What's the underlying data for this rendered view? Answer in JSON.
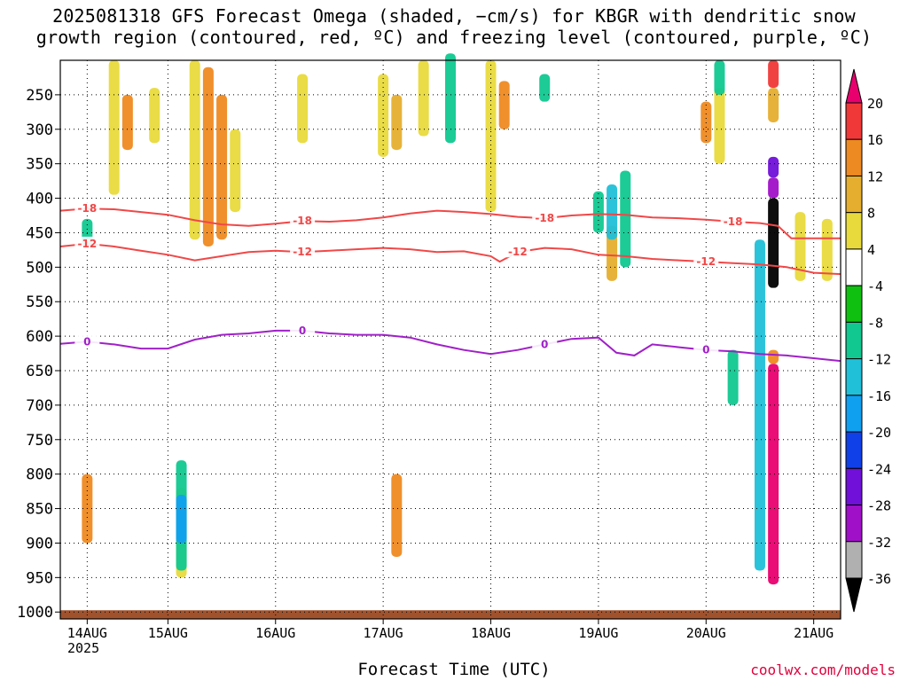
{
  "title_line1": "2025081318 GFS Forecast Omega (shaded, −cm/s) for KBGR with dendritic snow",
  "title_line2": "growth region (contoured, red, ºC) and freezing level (contoured, purple, ºC)",
  "credit": "coolwx.com/models",
  "chart_data": {
    "type": "heatmap",
    "xlabel": "Forecast Time (UTC)",
    "x_ticks": [
      "14AUG",
      "15AUG",
      "16AUG",
      "17AUG",
      "18AUG",
      "19AUG",
      "20AUG",
      "21AUG"
    ],
    "x_tick_hours": [
      6,
      24,
      48,
      72,
      96,
      120,
      144,
      168
    ],
    "x_range_hours": [
      0,
      174
    ],
    "year_label": "2025",
    "y_ticks": [
      250,
      300,
      350,
      400,
      450,
      500,
      550,
      600,
      650,
      700,
      750,
      800,
      850,
      900,
      950,
      1000
    ],
    "y_range_hpa": [
      200,
      1010
    ],
    "grid": true,
    "colorbar": {
      "labels": [
        "20",
        "16",
        "12",
        "8",
        "4",
        "-4",
        "-8",
        "-12",
        "-16",
        "-20",
        "-24",
        "-28",
        "-32",
        "-36"
      ],
      "colors": [
        "#e8006e",
        "#f03838",
        "#ee8a22",
        "#e6ae2e",
        "#e8da3c",
        "#ffffff",
        "#10c010",
        "#10c890",
        "#20c0d8",
        "#10a0f0",
        "#1040e8",
        "#7010d8",
        "#a010c8",
        "#b0b0b0",
        "#000000"
      ]
    },
    "contours": [
      {
        "label": "-18",
        "color": "#f04848",
        "points": [
          [
            0,
            418
          ],
          [
            6,
            415
          ],
          [
            12,
            416
          ],
          [
            18,
            420
          ],
          [
            24,
            424
          ],
          [
            30,
            432
          ],
          [
            36,
            438
          ],
          [
            42,
            440
          ],
          [
            48,
            437
          ],
          [
            54,
            433
          ],
          [
            60,
            434
          ],
          [
            66,
            432
          ],
          [
            72,
            428
          ],
          [
            78,
            422
          ],
          [
            84,
            418
          ],
          [
            90,
            420
          ],
          [
            96,
            423
          ],
          [
            102,
            427
          ],
          [
            108,
            429
          ],
          [
            114,
            425
          ],
          [
            120,
            423
          ],
          [
            126,
            424
          ],
          [
            132,
            428
          ],
          [
            138,
            429
          ],
          [
            144,
            431
          ],
          [
            150,
            434
          ],
          [
            156,
            436
          ],
          [
            160,
            440
          ],
          [
            163,
            458
          ],
          [
            168,
            458
          ],
          [
            174,
            458
          ]
        ]
      },
      {
        "label": "-12",
        "color": "#f04848",
        "points": [
          [
            0,
            470
          ],
          [
            6,
            466
          ],
          [
            12,
            470
          ],
          [
            18,
            476
          ],
          [
            24,
            482
          ],
          [
            30,
            490
          ],
          [
            36,
            484
          ],
          [
            42,
            478
          ],
          [
            48,
            476
          ],
          [
            54,
            478
          ],
          [
            60,
            476
          ],
          [
            66,
            474
          ],
          [
            72,
            472
          ],
          [
            78,
            474
          ],
          [
            84,
            478
          ],
          [
            90,
            477
          ],
          [
            96,
            484
          ],
          [
            98,
            492
          ],
          [
            102,
            478
          ],
          [
            108,
            472
          ],
          [
            114,
            474
          ],
          [
            120,
            482
          ],
          [
            126,
            484
          ],
          [
            132,
            488
          ],
          [
            138,
            490
          ],
          [
            144,
            492
          ],
          [
            150,
            494
          ],
          [
            156,
            496
          ],
          [
            162,
            500
          ],
          [
            168,
            508
          ],
          [
            174,
            510
          ]
        ]
      },
      {
        "label": "0",
        "color": "#a020c8",
        "points": [
          [
            0,
            611
          ],
          [
            6,
            608
          ],
          [
            12,
            612
          ],
          [
            18,
            618
          ],
          [
            24,
            618
          ],
          [
            30,
            605
          ],
          [
            36,
            598
          ],
          [
            42,
            596
          ],
          [
            48,
            592
          ],
          [
            54,
            592
          ],
          [
            60,
            596
          ],
          [
            66,
            598
          ],
          [
            72,
            598
          ],
          [
            78,
            602
          ],
          [
            84,
            612
          ],
          [
            90,
            620
          ],
          [
            96,
            626
          ],
          [
            102,
            620
          ],
          [
            108,
            612
          ],
          [
            114,
            604
          ],
          [
            120,
            602
          ],
          [
            124,
            624
          ],
          [
            128,
            628
          ],
          [
            132,
            612
          ],
          [
            138,
            616
          ],
          [
            144,
            620
          ],
          [
            150,
            622
          ],
          [
            156,
            626
          ],
          [
            162,
            628
          ],
          [
            168,
            632
          ],
          [
            174,
            636
          ]
        ]
      }
    ],
    "omega_cells": [
      {
        "h": 12,
        "p1": 200,
        "p2": 395,
        "v": 6
      },
      {
        "h": 15,
        "p1": 250,
        "p2": 330,
        "v": 12
      },
      {
        "h": 21,
        "p1": 240,
        "p2": 320,
        "v": 6
      },
      {
        "h": 30,
        "p1": 200,
        "p2": 460,
        "v": 6
      },
      {
        "h": 33,
        "p1": 210,
        "p2": 470,
        "v": 12
      },
      {
        "h": 36,
        "p1": 250,
        "p2": 460,
        "v": 14
      },
      {
        "h": 39,
        "p1": 300,
        "p2": 420,
        "v": 6
      },
      {
        "h": 54,
        "p1": 220,
        "p2": 320,
        "v": 5
      },
      {
        "h": 72,
        "p1": 220,
        "p2": 340,
        "v": 6
      },
      {
        "h": 75,
        "p1": 250,
        "p2": 330,
        "v": 10
      },
      {
        "h": 81,
        "p1": 200,
        "p2": 310,
        "v": 5
      },
      {
        "h": 96,
        "p1": 200,
        "p2": 420,
        "v": 6
      },
      {
        "h": 99,
        "p1": 230,
        "p2": 300,
        "v": 12
      },
      {
        "h": 144,
        "p1": 260,
        "p2": 320,
        "v": 12
      },
      {
        "h": 147,
        "p1": 240,
        "p2": 350,
        "v": 6
      },
      {
        "h": 159,
        "p1": 200,
        "p2": 240,
        "v": 18
      },
      {
        "h": 159,
        "p1": 240,
        "p2": 290,
        "v": 10
      },
      {
        "h": 171,
        "p1": 430,
        "p2": 520,
        "v": 6
      },
      {
        "h": 123,
        "p1": 440,
        "p2": 520,
        "v": 10
      },
      {
        "h": 27,
        "p1": 820,
        "p2": 950,
        "v": 6
      },
      {
        "h": 75,
        "p1": 800,
        "p2": 920,
        "v": 12
      },
      {
        "h": 6,
        "p1": 800,
        "p2": 900,
        "v": 12
      },
      {
        "h": 159,
        "p1": 640,
        "p2": 960,
        "v": 20
      },
      {
        "h": 159,
        "p1": 620,
        "p2": 640,
        "v": 14
      },
      {
        "h": 159,
        "p1": 370,
        "p2": 400,
        "v": -30
      },
      {
        "h": 159,
        "p1": 400,
        "p2": 530,
        "v": -36
      },
      {
        "h": 159,
        "p1": 340,
        "p2": 370,
        "v": -24
      },
      {
        "h": 156,
        "p1": 460,
        "p2": 940,
        "v": -14
      },
      {
        "h": 27,
        "p1": 780,
        "p2": 940,
        "v": -8
      },
      {
        "h": 27,
        "p1": 830,
        "p2": 900,
        "v": -18
      },
      {
        "h": 120,
        "p1": 390,
        "p2": 450,
        "v": -8
      },
      {
        "h": 123,
        "p1": 380,
        "p2": 460,
        "v": -14
      },
      {
        "h": 126,
        "p1": 360,
        "p2": 500,
        "v": -8
      },
      {
        "h": 87,
        "p1": 190,
        "p2": 320,
        "v": -8
      },
      {
        "h": 108,
        "p1": 220,
        "p2": 260,
        "v": -8
      },
      {
        "h": 147,
        "p1": 200,
        "p2": 250,
        "v": -8
      },
      {
        "h": 150,
        "p1": 620,
        "p2": 700,
        "v": -10
      },
      {
        "h": 165,
        "p1": 420,
        "p2": 520,
        "v": 6
      },
      {
        "h": 6,
        "p1": 430,
        "p2": 470,
        "v": -8
      }
    ]
  }
}
